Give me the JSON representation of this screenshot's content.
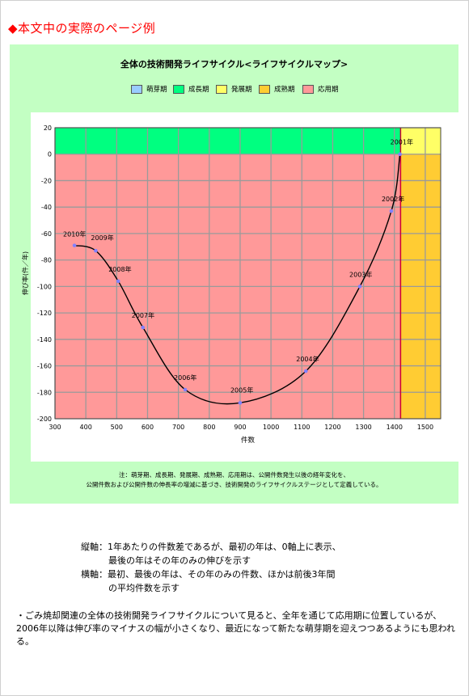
{
  "page_title": "◆本文中の実際のページ例",
  "note_lines": [
    "注：萌芽期、成長期、発展期、成熟期、応用期は、公開件数発生以後の経年変化を、",
    "公開件数および公開件数の伸長率の増減に基づき、技術開発のライフサイクルステージとして定義している。"
  ],
  "axis_description": {
    "vertical_1": "縦軸：1年あたりの件数差であるが、最初の年は、0軸上に表示、",
    "vertical_2": "最後の年はその年のみの伸びを示す",
    "horizontal_1": "横軸：最初、最後の年は、その年のみの件数、ほかは前後3年間",
    "horizontal_2": "の平均件数を示す"
  },
  "summary": "・ごみ焼却関連の全体の技術開発ライフサイクルについて見ると、全年を通じて応用期に位置しているが、2006年以降は伸び率のマイナスの幅が小さくなり、最近になって新たな萌芽期を迎えつつあるようにも思われる。",
  "colors": {
    "emergence": "#99ccff",
    "growth": "#00ff80",
    "development": "#ffff66",
    "maturity": "#ffcc33",
    "application": "#ff9999",
    "curve": "#000000",
    "point": "#8080ff",
    "divider": "#cc0033"
  },
  "chart_data": {
    "type": "scatter",
    "title": "全体の技術開発ライフサイクル<ライフサイクルマップ>",
    "xlabel": "件数",
    "ylabel": "伸び率(件／年)",
    "xlim": [
      300,
      1550
    ],
    "ylim": [
      -200,
      20
    ],
    "x_ticks": [
      300,
      400,
      500,
      600,
      700,
      800,
      900,
      1000,
      1100,
      1200,
      1300,
      1400,
      1500
    ],
    "y_ticks": [
      20,
      0,
      -20,
      -40,
      -60,
      -80,
      -100,
      -120,
      -140,
      -160,
      -180,
      -200
    ],
    "grid": true,
    "legend": [
      "萌芽期",
      "成長期",
      "発展期",
      "成熟期",
      "応用期"
    ],
    "legend_position": "top",
    "zones": [
      {
        "phase": "growth",
        "x": [
          300,
          1420
        ],
        "y": [
          0,
          20
        ]
      },
      {
        "phase": "application",
        "x": [
          300,
          1420
        ],
        "y": [
          -200,
          0
        ]
      },
      {
        "phase": "development",
        "x": [
          1420,
          1550
        ],
        "y": [
          0,
          20
        ]
      },
      {
        "phase": "maturity",
        "x": [
          1420,
          1550
        ],
        "y": [
          -200,
          0
        ]
      }
    ],
    "points": [
      {
        "label": "2010年",
        "x": 363,
        "y": -69
      },
      {
        "label": "2009年",
        "x": 432,
        "y": -73
      },
      {
        "label": "2008年",
        "x": 505,
        "y": -96
      },
      {
        "label": "2007年",
        "x": 585,
        "y": -131
      },
      {
        "label": "2006年",
        "x": 722,
        "y": -178
      },
      {
        "label": "2005年",
        "x": 900,
        "y": -188
      },
      {
        "label": "2004年",
        "x": 1113,
        "y": -164
      },
      {
        "label": "2003年",
        "x": 1288,
        "y": -100
      },
      {
        "label": "2002年",
        "x": 1390,
        "y": -43
      },
      {
        "label": "2001年",
        "x": 1418,
        "y": 0
      }
    ]
  }
}
